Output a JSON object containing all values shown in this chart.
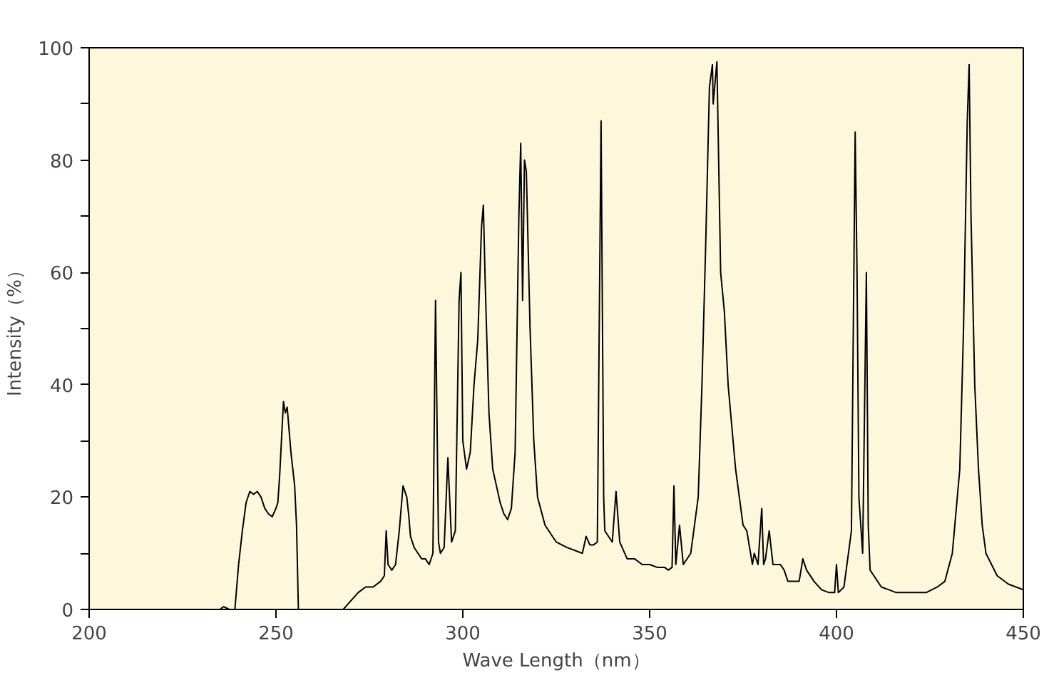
{
  "chart_data": {
    "type": "line",
    "xlabel": "Wave Length（nm）",
    "ylabel": "Intensity（%）",
    "xlim": [
      200,
      450
    ],
    "ylim": [
      0,
      100
    ],
    "xticks": [
      200,
      250,
      300,
      350,
      400,
      450
    ],
    "yticks": [
      0,
      {
        "value": 10,
        "label": null
      },
      20,
      {
        "value": 30,
        "label": null
      },
      40,
      {
        "value": 50,
        "label": null
      },
      60,
      {
        "value": 70,
        "label": null
      },
      80,
      {
        "value": 90,
        "label": null
      },
      100
    ],
    "grid": false,
    "marker": "none",
    "line_style": "solid",
    "series": [
      {
        "color": "#000000",
        "x": [
          235,
          236,
          237.5,
          239,
          240,
          241,
          242,
          243,
          244,
          245,
          246,
          247,
          248,
          249,
          250,
          250.5,
          251,
          252,
          252.5,
          253,
          254,
          255,
          255.5,
          256,
          262,
          268,
          270,
          272,
          274,
          276,
          278,
          279,
          279.5,
          280,
          281,
          282,
          283,
          284,
          285,
          285.5,
          286,
          287,
          288,
          289,
          290,
          291,
          292,
          292.7,
          293.5,
          294,
          295,
          296,
          297,
          298,
          299,
          299.5,
          300,
          301,
          302,
          303,
          304,
          305,
          305.5,
          306,
          307,
          308,
          309,
          310,
          311,
          312,
          313,
          314,
          315,
          315.5,
          316,
          316.5,
          317,
          318,
          319,
          320,
          322,
          325,
          328,
          330,
          332,
          333,
          334,
          335,
          336,
          337,
          337.7,
          338,
          340,
          341,
          342,
          344,
          346,
          348,
          350,
          352,
          354,
          355,
          356,
          356.5,
          357,
          358,
          359,
          361,
          363,
          364,
          365,
          366,
          366.8,
          367,
          368,
          369,
          370,
          371,
          373,
          375,
          376,
          377,
          377.5,
          378,
          379,
          380,
          380.5,
          381,
          382,
          383,
          385,
          386,
          387,
          388,
          390,
          391,
          392,
          394,
          396,
          398,
          399.5,
          400,
          400.5,
          402,
          404,
          405,
          405.5,
          406,
          407,
          408,
          408.5,
          409,
          410,
          412,
          414,
          416,
          420,
          424,
          427,
          429,
          431,
          433,
          434,
          435,
          435.5,
          436,
          437,
          438,
          439,
          440,
          443,
          446,
          450
        ],
        "values": [
          0,
          0.5,
          0,
          0,
          8,
          14,
          19,
          21,
          20.5,
          21,
          20,
          18,
          17,
          16.5,
          18,
          19,
          24,
          37,
          35,
          36,
          28,
          22,
          15,
          0,
          null,
          0,
          1.5,
          3,
          4,
          4,
          5,
          6,
          14,
          8,
          7,
          8,
          14,
          22,
          20,
          17,
          13,
          11,
          10,
          9,
          9,
          8,
          10,
          55,
          12,
          10,
          11,
          27,
          12,
          14,
          55,
          60,
          30,
          25,
          28,
          40,
          48,
          68,
          72,
          58,
          35,
          25,
          22,
          19,
          17,
          16,
          18,
          28,
          70,
          83,
          55,
          80,
          78,
          50,
          30,
          20,
          15,
          12,
          11,
          10.5,
          10,
          13,
          11.5,
          11.5,
          12,
          87,
          20,
          14,
          12,
          21,
          12,
          9,
          9,
          8,
          8,
          7.5,
          7.5,
          7,
          7.5,
          22,
          8,
          15,
          8,
          10,
          20,
          40,
          65,
          93,
          97,
          90,
          97.5,
          60,
          53,
          40,
          25,
          15,
          14,
          10,
          8,
          10,
          8,
          18,
          8,
          9,
          14,
          8,
          8,
          7,
          5,
          5,
          5,
          9,
          7,
          5,
          3.5,
          3,
          3,
          8,
          3,
          4,
          14,
          85,
          60,
          20,
          10,
          60,
          15,
          7,
          6,
          4,
          3.5,
          3,
          3,
          3,
          4,
          5,
          10,
          25,
          50,
          87,
          97,
          70,
          40,
          25,
          15,
          10,
          6,
          4.5,
          3.5
        ]
      }
    ]
  }
}
